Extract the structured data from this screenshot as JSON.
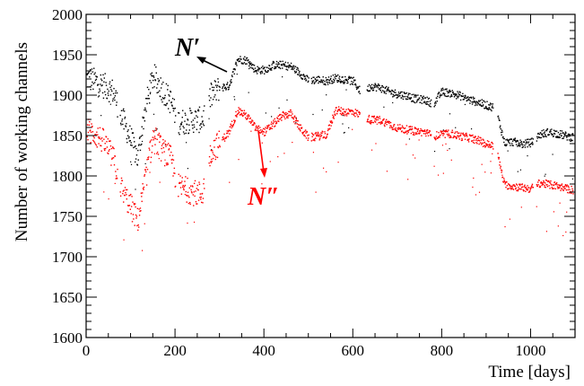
{
  "chart_data": {
    "type": "scatter",
    "xlabel": "Time [days]",
    "ylabel": "Number of working channels",
    "xlim": [
      0,
      1100
    ],
    "ylim": [
      1600,
      2000
    ],
    "x_ticks": [
      0,
      200,
      400,
      600,
      800,
      1000
    ],
    "y_ticks": [
      1600,
      1650,
      1700,
      1750,
      1800,
      1850,
      1900,
      1950,
      2000
    ],
    "grid": false,
    "legend": "none",
    "colors": {
      "n_prime": "#000000",
      "n_double_prime": "#ff0000"
    },
    "annotations": [
      {
        "text": "N′",
        "color": "#000000",
        "arrow_to": [
          340,
          1937
        ]
      },
      {
        "text": "N″",
        "color": "#ff0000",
        "arrow_to": [
          400,
          1790
        ]
      }
    ],
    "series": [
      {
        "name": "N′",
        "color": "#000000",
        "x": [
          0,
          20,
          40,
          60,
          80,
          100,
          115,
          130,
          150,
          170,
          190,
          205,
          220,
          240,
          260,
          280,
          300,
          320,
          340,
          360,
          380,
          400,
          420,
          440,
          460,
          480,
          500,
          520,
          540,
          560,
          580,
          600,
          620,
          640,
          660,
          680,
          700,
          720,
          740,
          760,
          780,
          800,
          820,
          840,
          860,
          880,
          900,
          920,
          940,
          960,
          980,
          1000,
          1020,
          1040,
          1060,
          1080,
          1095
        ],
        "y": [
          1922,
          1918,
          1912,
          1905,
          1872,
          1845,
          1822,
          1880,
          1925,
          1908,
          1892,
          1868,
          1868,
          1870,
          1870,
          1900,
          1910,
          1912,
          1945,
          1944,
          1932,
          1932,
          1938,
          1938,
          1936,
          1928,
          1918,
          1920,
          1918,
          1922,
          1920,
          1918,
          1902,
          1912,
          1910,
          1905,
          1902,
          1900,
          1896,
          1895,
          1890,
          1905,
          1903,
          1900,
          1895,
          1892,
          1888,
          1885,
          1842,
          1843,
          1840,
          1842,
          1852,
          1855,
          1853,
          1850,
          1848
        ]
      },
      {
        "name": "N″",
        "color": "#ff0000",
        "x": [
          0,
          20,
          40,
          60,
          80,
          100,
          115,
          130,
          150,
          170,
          190,
          205,
          220,
          240,
          260,
          280,
          300,
          320,
          340,
          360,
          380,
          400,
          420,
          440,
          460,
          480,
          500,
          520,
          540,
          560,
          580,
          600,
          620,
          640,
          660,
          680,
          700,
          720,
          740,
          760,
          780,
          800,
          820,
          840,
          860,
          880,
          900,
          920,
          940,
          960,
          980,
          1000,
          1020,
          1040,
          1060,
          1080,
          1095
        ],
        "y": [
          1858,
          1852,
          1842,
          1822,
          1782,
          1762,
          1745,
          1790,
          1850,
          1832,
          1822,
          1788,
          1785,
          1780,
          1778,
          1832,
          1842,
          1855,
          1882,
          1875,
          1860,
          1855,
          1865,
          1875,
          1878,
          1860,
          1848,
          1850,
          1852,
          1882,
          1880,
          1880,
          1875,
          1870,
          1870,
          1865,
          1860,
          1858,
          1856,
          1855,
          1850,
          1852,
          1853,
          1850,
          1848,
          1845,
          1840,
          1838,
          1790,
          1788,
          1786,
          1785,
          1792,
          1790,
          1788,
          1785,
          1783
        ]
      }
    ]
  }
}
